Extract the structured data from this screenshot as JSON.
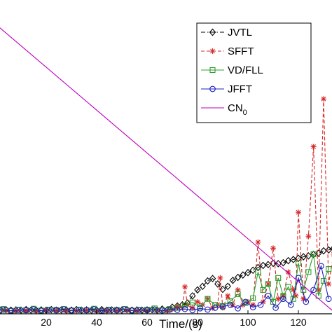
{
  "chart_data": {
    "type": "line",
    "xlabel": "Time/(s)",
    "ylabel": "",
    "xlim": [
      0,
      135
    ],
    "ylim": [
      0,
      1.0
    ],
    "xticks": [
      20,
      40,
      60,
      80,
      100,
      120
    ],
    "legend_position": "top-right",
    "grid": false,
    "series": [
      {
        "name": "JVTL",
        "color": "#000000",
        "marker": "diamond",
        "line": "dashdot",
        "x": [
          0,
          2,
          4,
          6,
          8,
          10,
          12,
          14,
          16,
          18,
          20,
          22,
          24,
          26,
          28,
          30,
          32,
          34,
          36,
          38,
          40,
          42,
          44,
          46,
          48,
          50,
          52,
          54,
          56,
          58,
          60,
          62,
          64,
          66,
          68,
          70,
          72,
          74,
          76,
          78,
          80,
          82,
          84,
          86,
          88,
          90,
          92,
          94,
          96,
          98,
          100,
          102,
          104,
          106,
          108,
          110,
          112,
          114,
          116,
          118,
          120,
          122,
          124,
          126,
          128,
          130,
          132,
          134
        ],
        "values": [
          0.012,
          0.012,
          0.014,
          0.012,
          0.013,
          0.012,
          0.014,
          0.012,
          0.012,
          0.013,
          0.012,
          0.014,
          0.012,
          0.013,
          0.012,
          0.012,
          0.014,
          0.012,
          0.013,
          0.012,
          0.012,
          0.014,
          0.012,
          0.013,
          0.012,
          0.012,
          0.014,
          0.012,
          0.013,
          0.012,
          0.013,
          0.014,
          0.012,
          0.016,
          0.013,
          0.022,
          0.026,
          0.03,
          0.036,
          0.06,
          0.08,
          0.092,
          0.11,
          0.118,
          0.1,
          0.082,
          0.092,
          0.112,
          0.122,
          0.13,
          0.138,
          0.146,
          0.155,
          0.162,
          0.165,
          0.169,
          0.168,
          0.171,
          0.178,
          0.182,
          0.186,
          0.191,
          0.194,
          0.199,
          0.203,
          0.211,
          0.214,
          0.22
        ]
      },
      {
        "name": "SFFT",
        "color": "#d62728",
        "marker": "star",
        "line": "dashed",
        "x": [
          0,
          4,
          8,
          12,
          16,
          20,
          24,
          28,
          32,
          36,
          40,
          44,
          48,
          52,
          56,
          60,
          64,
          68,
          70,
          72,
          74,
          75,
          76,
          78,
          80,
          82,
          84,
          86,
          88,
          89,
          90,
          92,
          94,
          96,
          98,
          100,
          102,
          104,
          106,
          108,
          110,
          112,
          114,
          116,
          118,
          119,
          120,
          122,
          124,
          126,
          128,
          130,
          132,
          134
        ],
        "values": [
          0.01,
          0.012,
          0.01,
          0.011,
          0.01,
          0.012,
          0.01,
          0.011,
          0.01,
          0.012,
          0.01,
          0.011,
          0.01,
          0.012,
          0.01,
          0.011,
          0.012,
          0.01,
          0.015,
          0.025,
          0.02,
          0.09,
          0.03,
          0.02,
          0.04,
          0.03,
          0.05,
          0.02,
          0.03,
          0.12,
          0.02,
          0.06,
          0.03,
          0.08,
          0.03,
          0.04,
          0.03,
          0.24,
          0.04,
          0.1,
          0.22,
          0.05,
          0.06,
          0.14,
          0.08,
          0.06,
          0.34,
          0.05,
          0.26,
          0.56,
          0.08,
          0.72,
          0.1,
          0.2
        ]
      },
      {
        "name": "VD/FLL",
        "color": "#2ca02c",
        "marker": "square",
        "line": "solid",
        "x": [
          0,
          3,
          6,
          9,
          12,
          15,
          18,
          21,
          24,
          27,
          30,
          33,
          36,
          39,
          42,
          45,
          48,
          51,
          54,
          57,
          60,
          63,
          66,
          69,
          72,
          75,
          78,
          81,
          84,
          87,
          90,
          93,
          96,
          99,
          102,
          104,
          106,
          108,
          110,
          112,
          114,
          116,
          118,
          120,
          122,
          124,
          126,
          128,
          130,
          132
        ],
        "values": [
          0.012,
          0.016,
          0.01,
          0.014,
          0.012,
          0.017,
          0.011,
          0.014,
          0.013,
          0.016,
          0.011,
          0.014,
          0.012,
          0.017,
          0.01,
          0.014,
          0.013,
          0.016,
          0.011,
          0.013,
          0.014,
          0.018,
          0.012,
          0.016,
          0.02,
          0.028,
          0.038,
          0.022,
          0.05,
          0.03,
          0.026,
          0.042,
          0.066,
          0.036,
          0.052,
          0.14,
          0.08,
          0.1,
          0.04,
          0.12,
          0.06,
          0.09,
          0.05,
          0.17,
          0.08,
          0.14,
          0.2,
          0.06,
          0.11,
          0.15
        ]
      },
      {
        "name": "JFFT",
        "color": "#1f1fbf",
        "marker": "circle",
        "line": "solid",
        "x": [
          0,
          3,
          6,
          9,
          12,
          15,
          18,
          21,
          24,
          27,
          30,
          33,
          36,
          39,
          42,
          45,
          48,
          51,
          54,
          57,
          60,
          63,
          66,
          69,
          72,
          75,
          78,
          81,
          84,
          87,
          90,
          93,
          96,
          99,
          102,
          105,
          108,
          111,
          114,
          117,
          120,
          123,
          126,
          129,
          132
        ],
        "values": [
          0.01,
          0.014,
          0.01,
          0.013,
          0.012,
          0.015,
          0.01,
          0.013,
          0.012,
          0.015,
          0.011,
          0.013,
          0.012,
          0.015,
          0.01,
          0.013,
          0.012,
          0.015,
          0.011,
          0.013,
          0.012,
          0.014,
          0.011,
          0.014,
          0.013,
          0.016,
          0.012,
          0.018,
          0.014,
          0.02,
          0.024,
          0.03,
          0.018,
          0.04,
          0.022,
          0.03,
          0.06,
          0.02,
          0.05,
          0.03,
          0.12,
          0.04,
          0.08,
          0.16,
          0.05
        ]
      },
      {
        "name": "CN0",
        "color": "#bf00bf",
        "marker": "none",
        "line": "solid",
        "x": [
          0,
          135
        ],
        "values": [
          0.97,
          0.0
        ]
      }
    ]
  }
}
